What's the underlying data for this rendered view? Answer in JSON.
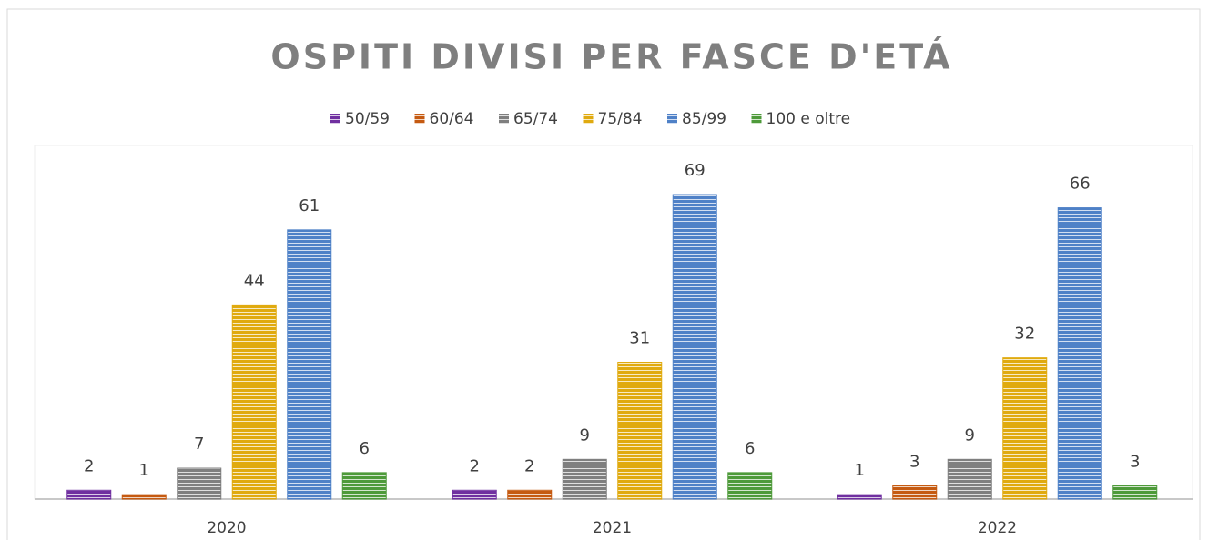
{
  "chart_data": {
    "type": "bar",
    "title": "OSPITI DIVISI PER FASCE D'ETÁ",
    "categories": [
      "2020",
      "2021",
      "2022"
    ],
    "series": [
      {
        "name": "50/59",
        "color": "#7030a0",
        "values": [
          2,
          2,
          1
        ]
      },
      {
        "name": "60/64",
        "color": "#c55a11",
        "values": [
          1,
          2,
          3
        ]
      },
      {
        "name": "65/74",
        "color": "#7f7f7f",
        "values": [
          7,
          9,
          9
        ]
      },
      {
        "name": "75/84",
        "color": "#e0aa0f",
        "values": [
          44,
          31,
          32
        ]
      },
      {
        "name": "85/99",
        "color": "#4f81c7",
        "values": [
          61,
          69,
          66
        ]
      },
      {
        "name": "100 e oltre",
        "color": "#4e9a3a",
        "values": [
          6,
          6,
          3
        ]
      }
    ],
    "legend": "top"
  }
}
